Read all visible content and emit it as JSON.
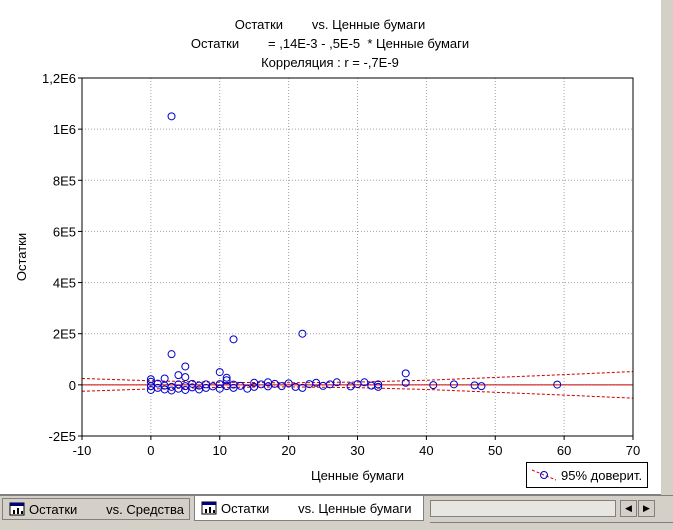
{
  "chart_data": {
    "type": "scatter",
    "title_lines": [
      "Остатки        vs. Ценные бумаги",
      "Остатки        = ,14E-3 - ,5E-5  * Ценные бумаги",
      "Корреляция : r = -,7E-9"
    ],
    "xlabel": "Ценные бумаги",
    "ylabel": "Остатки",
    "xlim": [
      -10,
      70
    ],
    "ylim": [
      -200000,
      1200000
    ],
    "x_ticks": [
      -10,
      0,
      10,
      20,
      30,
      40,
      50,
      60,
      70
    ],
    "x_tick_labels": [
      "-10",
      "0",
      "10",
      "20",
      "30",
      "40",
      "50",
      "60",
      "70"
    ],
    "y_ticks": [
      -200000,
      0,
      200000,
      400000,
      600000,
      800000,
      1000000,
      1200000
    ],
    "y_tick_labels": [
      "-2E5",
      "0",
      "2E5",
      "4E5",
      "6E5",
      "8E5",
      "1E6",
      "1,2E6"
    ],
    "grid": true,
    "legend": {
      "label": "95% доверит.",
      "position": "bottom-right"
    },
    "colors": {
      "points": "#0000cc",
      "regression": "#cc0000",
      "confidence": "#cc0000",
      "grid": "#a0a0a0"
    },
    "regression_line": {
      "intercept": 0.00014,
      "slope": -5e-06
    },
    "confidence_band": {
      "x": [
        -10,
        0,
        10,
        20,
        30,
        40,
        50,
        60,
        70
      ],
      "upper": [
        25000,
        16000,
        10000,
        8000,
        11000,
        18000,
        29000,
        40000,
        52000
      ],
      "lower": [
        -25000,
        -16000,
        -10000,
        -8000,
        -11000,
        -18000,
        -29000,
        -40000,
        -52000
      ]
    },
    "points": [
      {
        "x": 3,
        "y": 1050000
      },
      {
        "x": 22,
        "y": 200000
      },
      {
        "x": 12,
        "y": 178000
      },
      {
        "x": 3,
        "y": 120000
      },
      {
        "x": 5,
        "y": 72000
      },
      {
        "x": 10,
        "y": 50000
      },
      {
        "x": 37,
        "y": 45000
      },
      {
        "x": 4,
        "y": 38000
      },
      {
        "x": 5,
        "y": 30000
      },
      {
        "x": 11,
        "y": 28000
      },
      {
        "x": 0,
        "y": 22000
      },
      {
        "x": 2,
        "y": 25000
      },
      {
        "x": 11,
        "y": 18000
      },
      {
        "x": 0,
        "y": 12000
      },
      {
        "x": 0,
        "y": -5000
      },
      {
        "x": 0,
        "y": -20000
      },
      {
        "x": 1,
        "y": 5000
      },
      {
        "x": 1,
        "y": -12000
      },
      {
        "x": 2,
        "y": -3000
      },
      {
        "x": 2,
        "y": -18000
      },
      {
        "x": 3,
        "y": -8000
      },
      {
        "x": 3,
        "y": -22000
      },
      {
        "x": 4,
        "y": 2000
      },
      {
        "x": 4,
        "y": -15000
      },
      {
        "x": 5,
        "y": -5000
      },
      {
        "x": 5,
        "y": -20000
      },
      {
        "x": 6,
        "y": 4000
      },
      {
        "x": 6,
        "y": -10000
      },
      {
        "x": 7,
        "y": -3000
      },
      {
        "x": 7,
        "y": -18000
      },
      {
        "x": 8,
        "y": 2000
      },
      {
        "x": 8,
        "y": -12000
      },
      {
        "x": 9,
        "y": -6000
      },
      {
        "x": 10,
        "y": 3000
      },
      {
        "x": 10,
        "y": -15000
      },
      {
        "x": 11,
        "y": -5000
      },
      {
        "x": 12,
        "y": 1000
      },
      {
        "x": 12,
        "y": -12000
      },
      {
        "x": 13,
        "y": -4000
      },
      {
        "x": 14,
        "y": -15000
      },
      {
        "x": 15,
        "y": 8000
      },
      {
        "x": 15,
        "y": -8000
      },
      {
        "x": 16,
        "y": 2000
      },
      {
        "x": 17,
        "y": 10000
      },
      {
        "x": 17,
        "y": -6000
      },
      {
        "x": 18,
        "y": 4000
      },
      {
        "x": 19,
        "y": -5000
      },
      {
        "x": 20,
        "y": 6000
      },
      {
        "x": 21,
        "y": -8000
      },
      {
        "x": 22,
        "y": -12000
      },
      {
        "x": 23,
        "y": 3000
      },
      {
        "x": 24,
        "y": 8000
      },
      {
        "x": 25,
        "y": -4000
      },
      {
        "x": 26,
        "y": 2000
      },
      {
        "x": 27,
        "y": 10000
      },
      {
        "x": 29,
        "y": -6000
      },
      {
        "x": 30,
        "y": 3000
      },
      {
        "x": 31,
        "y": 10000
      },
      {
        "x": 32,
        "y": -3000
      },
      {
        "x": 33,
        "y": 2000
      },
      {
        "x": 33,
        "y": -8000
      },
      {
        "x": 37,
        "y": 8000
      },
      {
        "x": 41,
        "y": -1000
      },
      {
        "x": 44,
        "y": 2000
      },
      {
        "x": 47,
        "y": -2000
      },
      {
        "x": 48,
        "y": -5000
      },
      {
        "x": 59,
        "y": 1000
      }
    ]
  },
  "tabs": [
    {
      "label": "Остатки        vs. Средства",
      "active": false
    },
    {
      "label": "Остатки        vs. Ценные бумаги",
      "active": true
    }
  ],
  "scroll": {
    "left_icon": "triangle-left-icon",
    "right_icon": "triangle-right-icon"
  }
}
